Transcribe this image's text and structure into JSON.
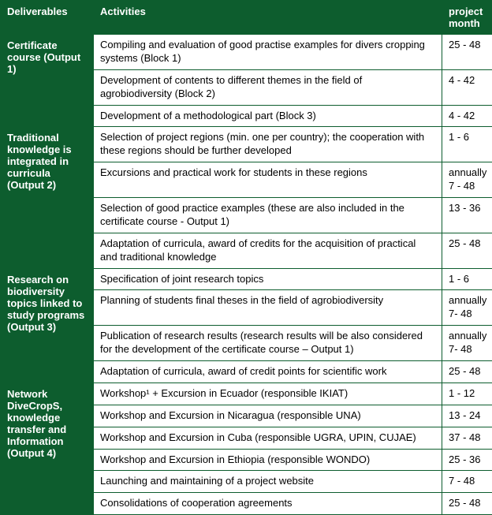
{
  "headers": {
    "deliverables": "Deliverables",
    "activities": "Activities",
    "project_month": "project month"
  },
  "groups": [
    {
      "deliverable": "Certificate course (Output 1)",
      "rows": [
        {
          "activity": "Compiling and evaluation of good practise examples for divers cropping systems (Block 1)",
          "pm": "25 - 48"
        },
        {
          "activity": "Development of contents to different themes in the field of agrobiodiversity (Block 2)",
          "pm": "4 - 42"
        },
        {
          "activity": "Development of a methodological part (Block 3)",
          "pm": "4 - 42"
        }
      ]
    },
    {
      "deliverable": "Traditional knowledge is integrated in curricula (Output 2)",
      "rows": [
        {
          "activity": "Selection of project regions (min. one per country); the cooperation with these regions should be further developed",
          "pm": "1 - 6"
        },
        {
          "activity": "Excursions and practical work for students in these regions",
          "pm": "annually 7 - 48"
        },
        {
          "activity": "Selection of good practice examples (these are also included in the certificate course - Output 1)",
          "pm": "13 - 36"
        },
        {
          "activity": "Adaptation of curricula, award of credits for the acquisition of practical and traditional knowledge",
          "pm": "25 - 48"
        }
      ]
    },
    {
      "deliverable": "Research on biodiversity topics linked to study programs (Output 3)",
      "rows": [
        {
          "activity": "Specification of joint research topics",
          "pm": "1 - 6"
        },
        {
          "activity": "Planning of students final theses in the field of agrobiodiversity",
          "pm": "annually 7- 48"
        },
        {
          "activity": "Publication of research results (research results will be also considered for the development of the certificate course – Output 1)",
          "pm": "annually 7- 48"
        },
        {
          "activity": "Adaptation of curricula, award of credit points  for scientific work",
          "pm": "25 - 48"
        }
      ]
    },
    {
      "deliverable": "Network DiveCropS, knowledge transfer and Information (Output 4)",
      "rows": [
        {
          "activity": "Workshop¹ + Excursion in Ecuador (responsible IKIAT)",
          "pm": "1 - 12"
        },
        {
          "activity": "Workshop and Excursion in Nicaragua (responsible UNA)",
          "pm": "13 - 24"
        },
        {
          "activity": "Workshop and Excursion in Cuba (responsible UGRA, UPIN, CUJAE)",
          "pm": "37 - 48"
        },
        {
          "activity": "Workshop and Excursion in Ethiopia (responsible WONDO)",
          "pm": "25 - 36"
        },
        {
          "activity": "Launching and maintaining of a project website",
          "pm": "7 - 48"
        },
        {
          "activity": "Consolidations of cooperation agreements",
          "pm": "25 - 48"
        }
      ]
    }
  ]
}
